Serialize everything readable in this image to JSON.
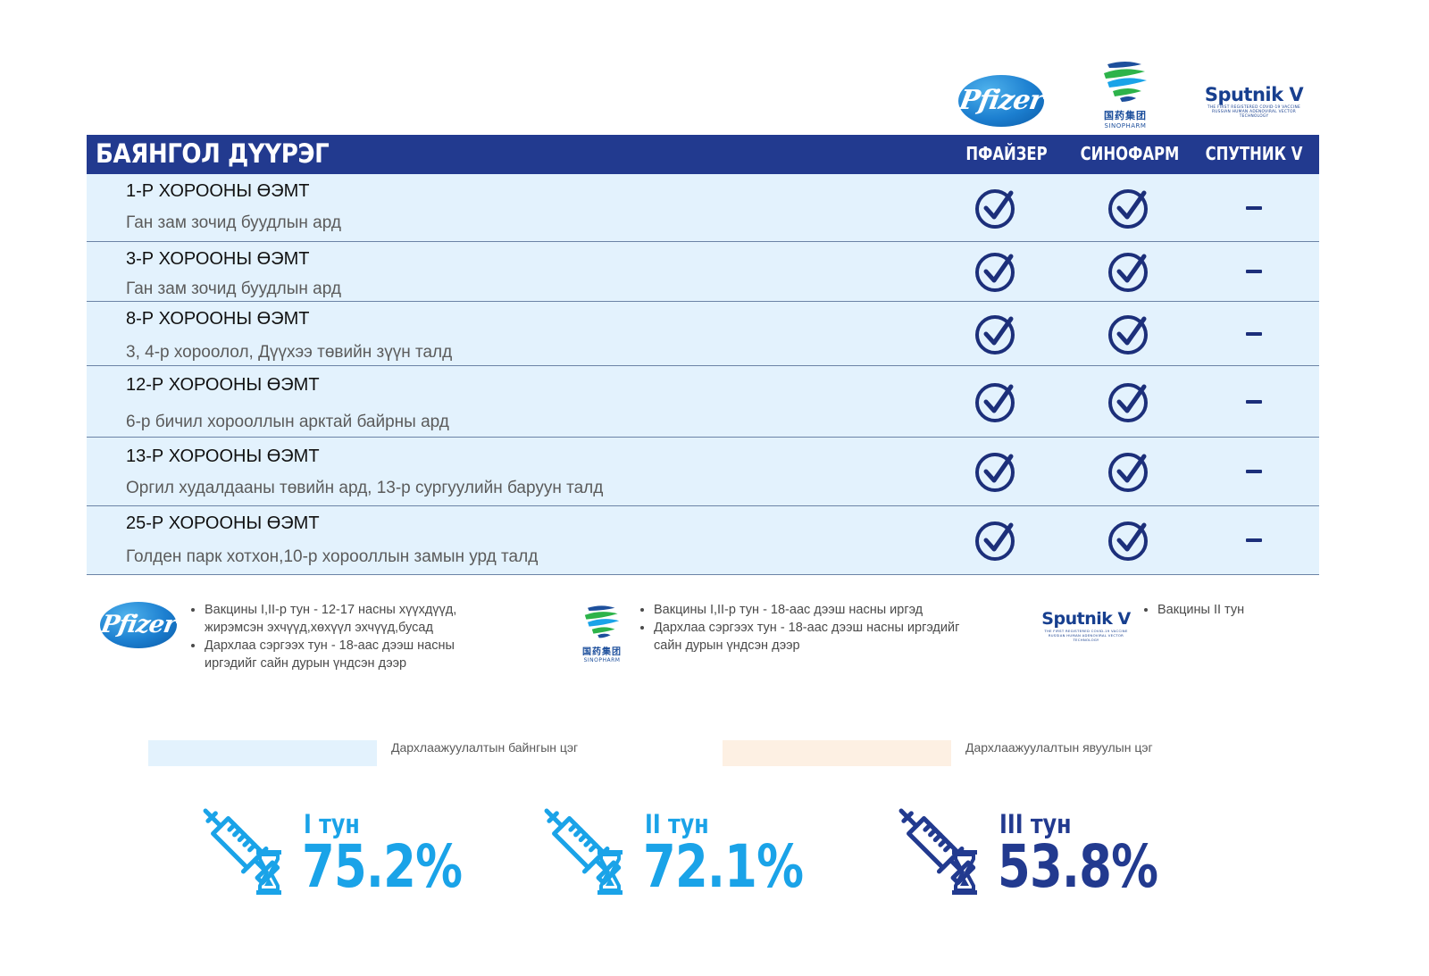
{
  "logos": {
    "pfizer": "Pfizer",
    "sinopharm_zh": "国药集团",
    "sinopharm_en": "SINOPHARM",
    "sputnik": "Sputnik V",
    "sputnik_tag1": "THE FIRST REGISTERED COVID-19 VACCINE",
    "sputnik_tag2": "RUSSIAN HUMAN ADENOVIRAL VECTOR TECHNOLOGY"
  },
  "table": {
    "district": "БАЯНГОЛ ДҮҮРЭГ",
    "columns": [
      "ПФАЙЗЕР",
      "СИНОФАРМ",
      "СПУТНИК V"
    ],
    "rows": [
      {
        "name": "1-Р ХОРООНЫ ӨЭМТ",
        "address": "Ган зам зочид буудлын ард",
        "pfizer": true,
        "sinopharm": true,
        "sputnik": false
      },
      {
        "name": "3-Р ХОРООНЫ ӨЭМТ",
        "address": "Ган зам зочид буудлын ард",
        "pfizer": true,
        "sinopharm": true,
        "sputnik": false
      },
      {
        "name": "8-Р ХОРООНЫ ӨЭМТ",
        "address": "3, 4-р хороолол, Дүүхээ төвийн зүүн талд",
        "pfizer": true,
        "sinopharm": true,
        "sputnik": false
      },
      {
        "name": "12-Р ХОРООНЫ ӨЭМТ",
        "address": "6-р бичил хорооллын арктай байрны ард",
        "pfizer": true,
        "sinopharm": true,
        "sputnik": false
      },
      {
        "name": "13-Р ХОРООНЫ ӨЭМТ",
        "address": "Оргил худалдааны төвийн ард, 13-р сургуулийн баруун талд",
        "pfizer": true,
        "sinopharm": true,
        "sputnik": false
      },
      {
        "name": "25-Р ХОРООНЫ ӨЭМТ",
        "address": "Голден парк хотхон,10-р хорооллын замын урд талд",
        "pfizer": true,
        "sinopharm": true,
        "sputnik": false
      }
    ]
  },
  "legend": {
    "pfizer": [
      "Вакцины I,II-р тун - 12-17 насны хүүхдүүд, жирэмсэн эхчүүд,хөхүүл эхчүүд,бусад",
      "Дархлаа сэргээх тун - 18-аас дээш насны иргэдийг сайн дурын үндсэн дээр"
    ],
    "sinopharm": [
      "Вакцины I,II-р тун - 18-аас дээш насны иргэд",
      "Дархлаа сэргээх тун - 18-аас дээш насны иргэдийг сайн дурын үндсэн дээр"
    ],
    "sputnik": [
      "Вакцины II тун"
    ]
  },
  "sites": {
    "permanent": {
      "label": "Дархлаажуулалтын байнгын цэг",
      "color": "#e3f2fd"
    },
    "mobile": {
      "label": "Дархлаажуулалтын явуулын цэг",
      "color": "#fdf0e3"
    }
  },
  "doses": [
    {
      "label": "I тун",
      "percent": "75.2%",
      "color": "#1aa3e8"
    },
    {
      "label": "II тун",
      "percent": "72.1%",
      "color": "#1aa3e8"
    },
    {
      "label": "III тун",
      "percent": "53.8%",
      "color": "#223a8f"
    }
  ],
  "colors": {
    "header": "#223a8f",
    "row": "#e3f2fd",
    "check": "#1c2f7a"
  }
}
